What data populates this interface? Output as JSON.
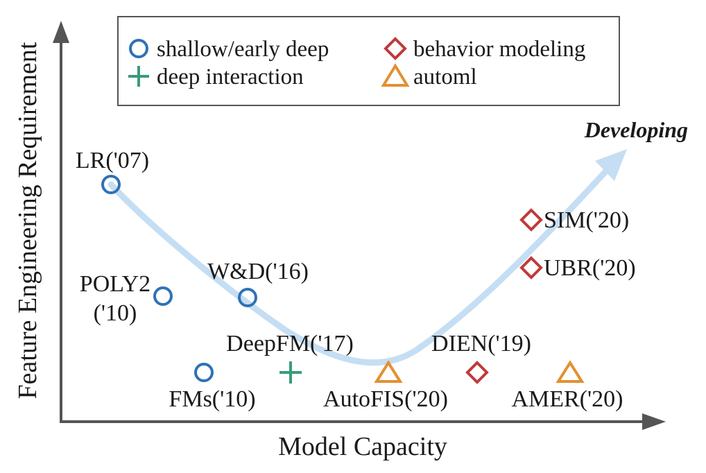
{
  "chart_data": {
    "type": "scatter",
    "xlabel": "Model Capacity",
    "ylabel": "Feature Engineering Requirement",
    "trend_label": "Developing",
    "legend": [
      {
        "key": "shallow",
        "label": "shallow/early deep",
        "marker": "circle",
        "color": "#2f72b5"
      },
      {
        "key": "behavior",
        "label": "behavior modeling",
        "marker": "diamond",
        "color": "#c0393b"
      },
      {
        "key": "deep",
        "label": "deep interaction",
        "marker": "plus",
        "color": "#3a9b7a"
      },
      {
        "key": "automl",
        "label": "automl",
        "marker": "triangle",
        "color": "#e39032"
      }
    ],
    "points": [
      {
        "label": "LR('07)",
        "category": "shallow"
      },
      {
        "label": "POLY2",
        "label2": "('10)",
        "category": "shallow"
      },
      {
        "label": "W&D('16)",
        "category": "shallow"
      },
      {
        "label": "FMs('10)",
        "category": "shallow"
      },
      {
        "label": "DeepFM('17)",
        "category": "deep"
      },
      {
        "label": "AutoFIS('20)",
        "category": "automl"
      },
      {
        "label": "DIEN('19)",
        "category": "behavior"
      },
      {
        "label": "AMER('20)",
        "category": "automl"
      },
      {
        "label": "SIM('20)",
        "category": "behavior"
      },
      {
        "label": "UBR('20)",
        "category": "behavior"
      }
    ],
    "colors": {
      "axis": "#555555",
      "trend": "#c5def3"
    }
  }
}
